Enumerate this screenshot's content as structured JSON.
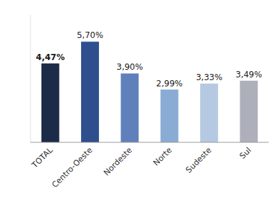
{
  "chart_data": {
    "type": "bar",
    "categories": [
      "TOTAL",
      "Centro-Oeste",
      "Nordeste",
      "Norte",
      "Sudeste",
      "Sul"
    ],
    "values": [
      4.47,
      5.7,
      3.9,
      2.99,
      3.33,
      3.49
    ],
    "value_labels": [
      "4,47%",
      "5,70%",
      "3,90%",
      "2,99%",
      "3,33%",
      "3,49%"
    ],
    "colors": [
      "#1c2b47",
      "#2e4e8e",
      "#6080bc",
      "#8aacd4",
      "#b5c9e2",
      "#adb0ba"
    ],
    "ylim": [
      0,
      7.2
    ],
    "data_labels": true,
    "tick_labels": "x",
    "grid": false
  }
}
